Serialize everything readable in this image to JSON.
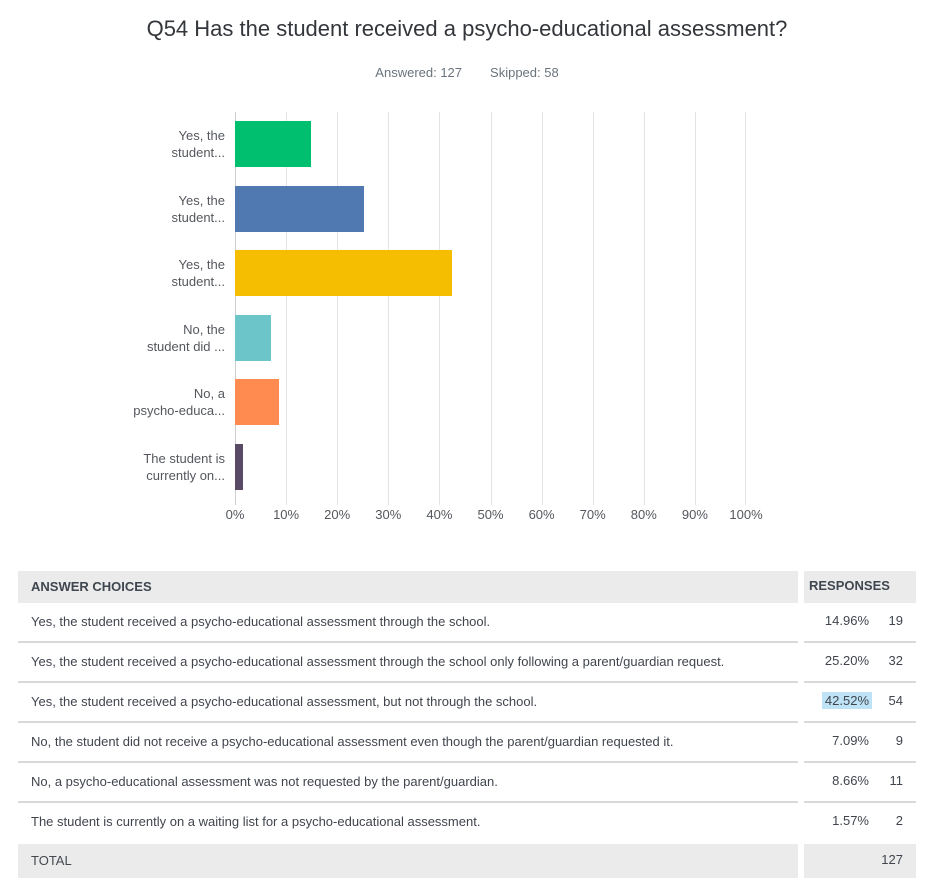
{
  "header": {
    "title": "Q54 Has the student received a psycho-educational assessment?",
    "answered": "Answered: 127",
    "skipped": "Skipped: 58"
  },
  "chart_data": {
    "type": "bar",
    "orientation": "horizontal",
    "title": "Q54 Has the student received a psycho-educational assessment?",
    "categories": [
      "Yes, the\nstudent...",
      "Yes, the\nstudent...",
      "Yes, the\nstudent...",
      "No, the\nstudent did ...",
      "No, a\npsycho-educa...",
      "The student is\ncurrently on..."
    ],
    "values": [
      14.96,
      25.2,
      42.52,
      7.09,
      8.66,
      1.57
    ],
    "colors": [
      "#00BF6F",
      "#5079B1",
      "#F5BE00",
      "#6CC5C8",
      "#FF8B50",
      "#594A66"
    ],
    "xlabel": "",
    "ylabel": "",
    "xlim": [
      0,
      100
    ],
    "x_ticks": [
      "0%",
      "10%",
      "20%",
      "30%",
      "40%",
      "50%",
      "60%",
      "70%",
      "80%",
      "90%",
      "100%"
    ],
    "grid": true,
    "legend": "none"
  },
  "table": {
    "headers": [
      "ANSWER CHOICES",
      "RESPONSES"
    ],
    "rows": [
      {
        "answer": "Yes, the student received a psycho-educational assessment through the school.",
        "percent": "14.96%",
        "count": "19",
        "highlight": false
      },
      {
        "answer": "Yes, the student received a psycho-educational assessment through the school only following a parent/guardian request.",
        "percent": "25.20%",
        "count": "32",
        "highlight": false
      },
      {
        "answer": "Yes, the student received a psycho-educational assessment, but not through the school.",
        "percent": "42.52%",
        "count": "54",
        "highlight": true
      },
      {
        "answer": "No, the student did not receive a psycho-educational assessment even though the parent/guardian requested it.",
        "percent": "7.09%",
        "count": "9",
        "highlight": false
      },
      {
        "answer": "No, a psycho-educational assessment was not requested by the parent/guardian.",
        "percent": "8.66%",
        "count": "11",
        "highlight": false
      },
      {
        "answer": "The student is currently on a waiting list for a psycho-educational assessment.",
        "percent": "1.57%",
        "count": "2",
        "highlight": false
      }
    ],
    "total_label": "TOTAL",
    "total_value": "127"
  },
  "colors": {
    "highlight": "#BEE3F6",
    "table_header_bg": "#EBEBEB",
    "gridline": "#E4E4E4"
  }
}
